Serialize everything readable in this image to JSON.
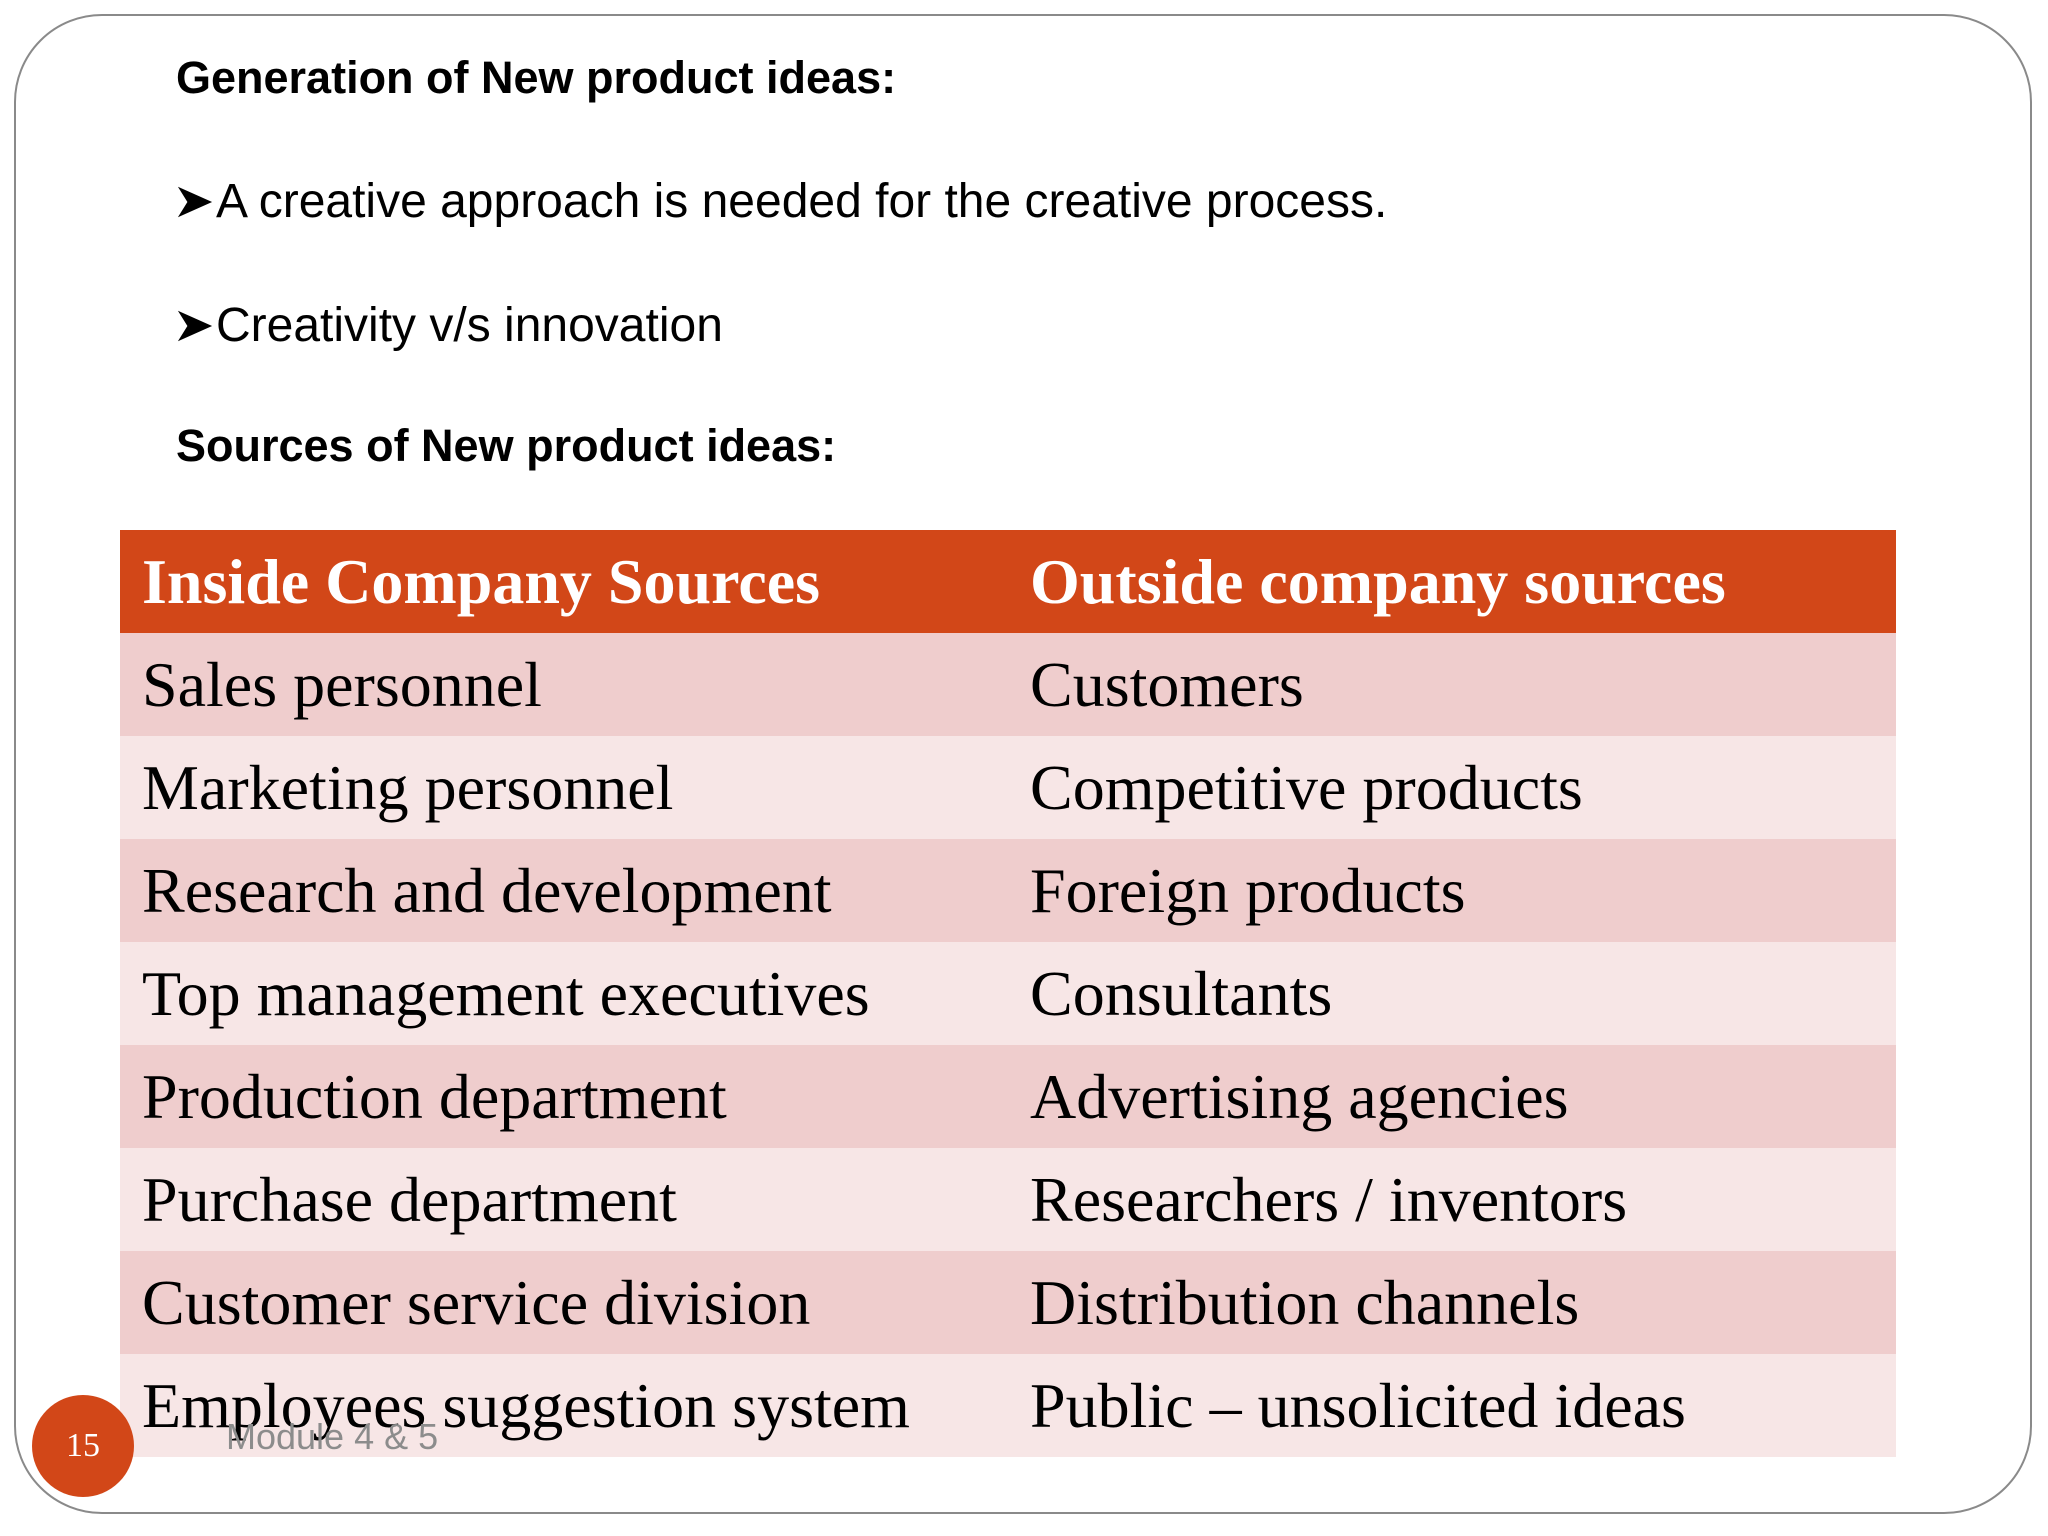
{
  "slide": {
    "heading_generation": "Generation of New product ideas:",
    "bullets": [
      "A creative approach is needed for the creative process.",
      "Creativity v/s innovation"
    ],
    "heading_sources": "Sources of New product ideas:"
  },
  "table": {
    "headers": [
      "Inside Company Sources",
      "Outside company sources"
    ],
    "rows": [
      [
        "Sales personnel",
        "Customers"
      ],
      [
        "Marketing personnel",
        "Competitive products"
      ],
      [
        "Research and development",
        "Foreign products"
      ],
      [
        "Top management executives",
        "Consultants"
      ],
      [
        "Production department",
        "Advertising agencies"
      ],
      [
        "Purchase department",
        "Researchers / inventors"
      ],
      [
        "Customer service division",
        "Distribution channels"
      ],
      [
        "Employees suggestion system",
        "Public – unsolicited ideas"
      ]
    ]
  },
  "footer": {
    "page_number": "15",
    "text": "Module 4 & 5"
  },
  "colors": {
    "accent": "#d24718",
    "row_dark": "#efcdcd",
    "row_light": "#f7e6e6",
    "footer_text": "#8c8c8c"
  },
  "icons": {
    "bullet": "arrowhead-bullet-icon"
  }
}
